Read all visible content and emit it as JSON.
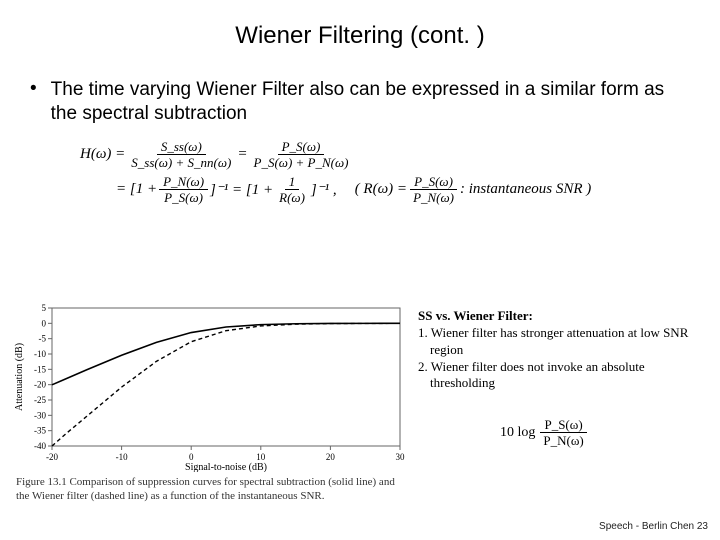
{
  "title": "Wiener Filtering (cont. )",
  "bullet": "The time varying Wiener Filter also can be expressed in a similar form as the spectral subtraction",
  "formulas": {
    "h_label": "H(ω) =",
    "f1_num": "S_ss(ω)",
    "f1_den": "S_ss(ω) + S_nn(ω)",
    "eq": "=",
    "f2_num": "P_S(ω)",
    "f2_den": "P_S(ω) + P_N(ω)",
    "row2_open": "= [1 +",
    "f3_num": "P_N(ω)",
    "f3_den": "P_S(ω)",
    "row2_mid": "]⁻¹ = [1 +",
    "f4_num": "1",
    "f4_den": "R(ω)",
    "row2_close": "]⁻¹ ,",
    "r_label": "( R(ω) =",
    "f5_num": "P_S(ω)",
    "f5_den": "P_N(ω)",
    "r_close": ": instantaneous SNR )"
  },
  "chart": {
    "type": "line",
    "xlim": [
      -20,
      30
    ],
    "ylim": [
      -40,
      5
    ],
    "xticks": [
      -20,
      -10,
      0,
      10,
      20,
      30
    ],
    "yticks": [
      -40,
      -35,
      -30,
      -25,
      -20,
      -15,
      -10,
      -5,
      0,
      5
    ],
    "xlabel": "Signal-to-noise (dB)",
    "ylabel": "Attenuation (dB)",
    "label_fontsize": 10,
    "tick_fontsize": 9,
    "line_color": "#000000",
    "grid_color": "#666666",
    "background_color": "#ffffff",
    "series": [
      {
        "name": "spectral-subtraction",
        "dash": "none",
        "width": 1.6,
        "points": [
          [
            -20,
            -20.05
          ],
          [
            -15,
            -15.15
          ],
          [
            -10,
            -10.4
          ],
          [
            -5,
            -6.2
          ],
          [
            0,
            -3.0
          ],
          [
            5,
            -1.2
          ],
          [
            10,
            -0.42
          ],
          [
            15,
            -0.14
          ],
          [
            20,
            -0.045
          ],
          [
            25,
            -0.015
          ],
          [
            30,
            0
          ]
        ]
      },
      {
        "name": "wiener-filter",
        "dash": "4 3",
        "width": 1.4,
        "points": [
          [
            -20,
            -40
          ],
          [
            -18,
            -36
          ],
          [
            -15,
            -30.3
          ],
          [
            -10,
            -20.8
          ],
          [
            -5,
            -12.4
          ],
          [
            0,
            -6.0
          ],
          [
            5,
            -2.4
          ],
          [
            10,
            -0.85
          ],
          [
            15,
            -0.28
          ],
          [
            20,
            -0.09
          ],
          [
            25,
            -0.03
          ],
          [
            30,
            0
          ]
        ]
      }
    ]
  },
  "caption": "Figure 13.1 Comparison of suppression curves for spectral subtraction (solid line) and the Wiener filter (dashed line) as a function of the instantaneous SNR.",
  "sidenote": {
    "header": "SS vs. Wiener Filter:",
    "item1": "1. Wiener filter has stronger attenuation at low SNR region",
    "item2": "2. Wiener filter does not invoke an absolute thresholding"
  },
  "log_formula": {
    "prefix": "10 log",
    "num": "P_S(ω)",
    "den": "P_N(ω)"
  },
  "footer": "Speech - Berlin Chen  23"
}
